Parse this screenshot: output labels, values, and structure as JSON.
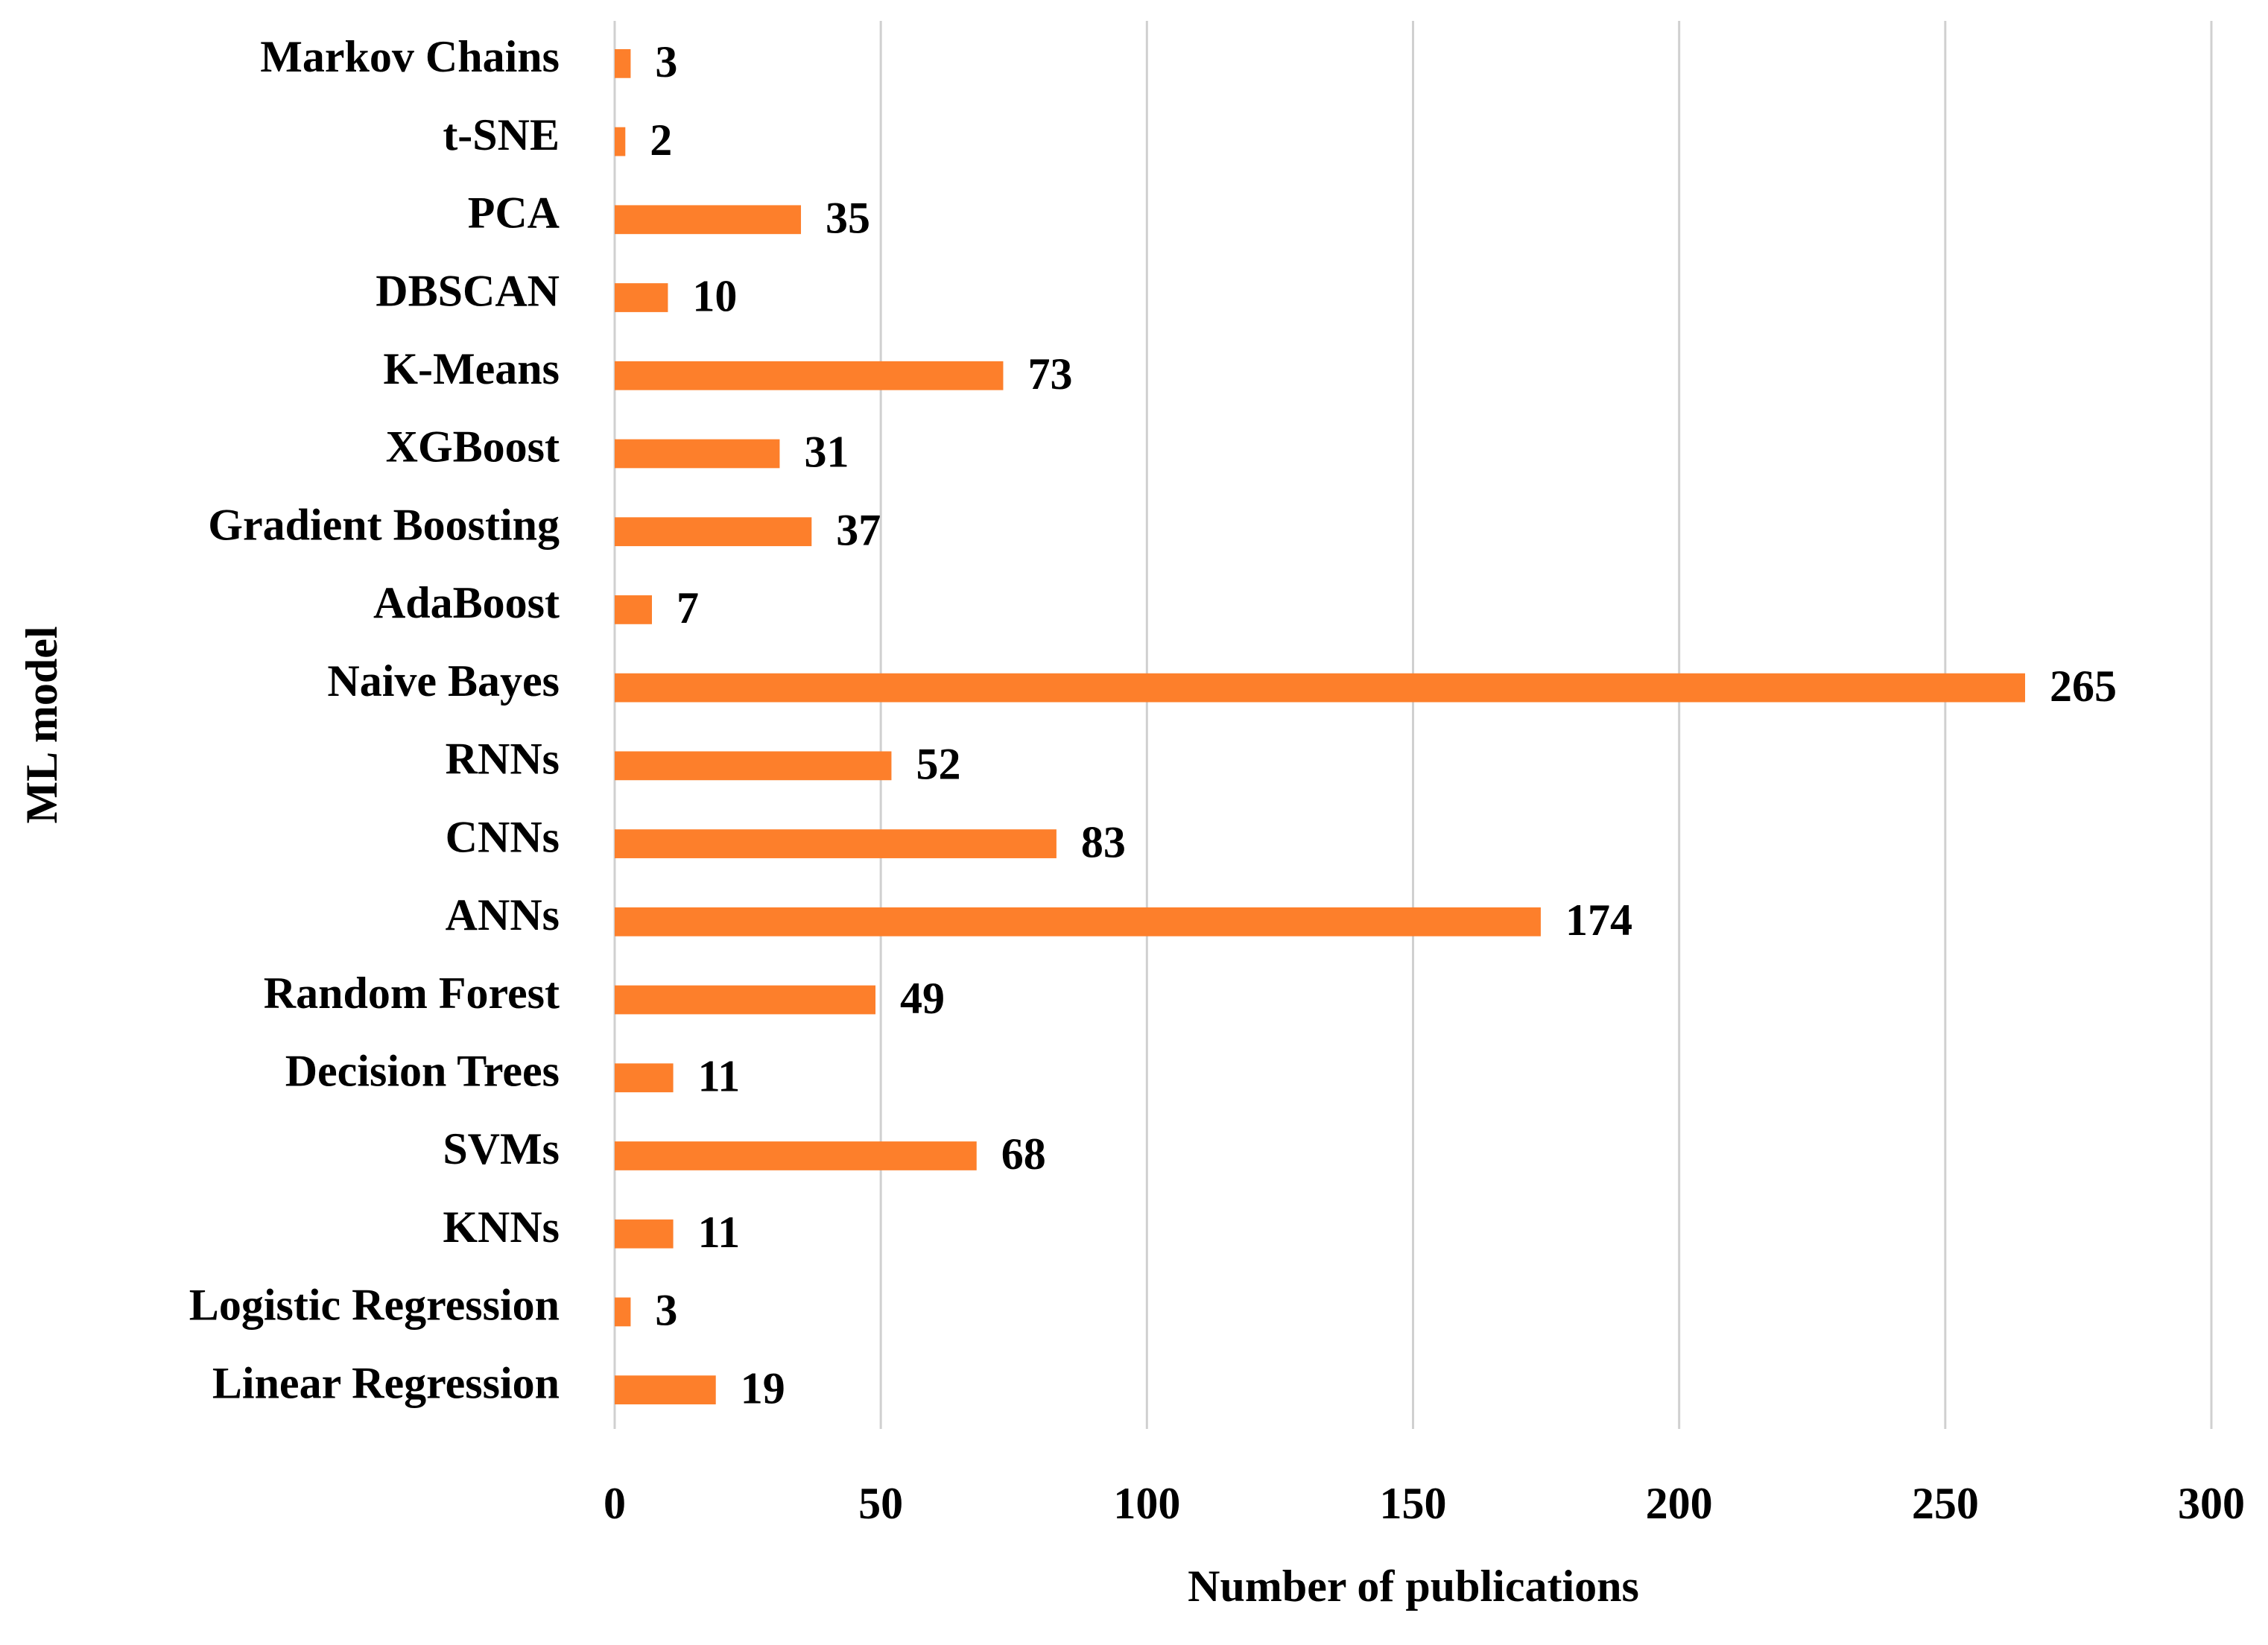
{
  "chart_data": {
    "type": "bar",
    "orientation": "horizontal",
    "x_label": "Number of publications",
    "y_label": "ML model",
    "categories": [
      "Markov Chains",
      "t-SNE",
      "PCA",
      "DBSCAN",
      "K-Means",
      "XGBoost",
      "Gradient Boosting",
      "AdaBoost",
      "Naive Bayes",
      "RNNs",
      "CNNs",
      "ANNs",
      "Random Forest",
      "Decision Trees",
      "SVMs",
      "KNNs",
      "Logistic Regression",
      "Linear Regression"
    ],
    "values": [
      3,
      2,
      35,
      10,
      73,
      31,
      37,
      7,
      265,
      52,
      83,
      174,
      49,
      11,
      68,
      11,
      3,
      19
    ],
    "color": "#fd7f2b",
    "xlim": [
      0,
      300
    ],
    "xticks": [
      0,
      50,
      100,
      150,
      200,
      250,
      300
    ],
    "grid": true
  }
}
